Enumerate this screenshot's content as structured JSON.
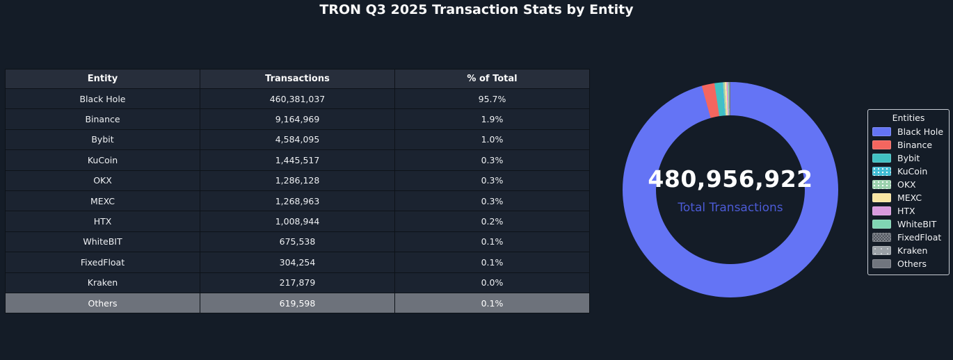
{
  "title": "TRON Q3 2025 Transaction Stats by Entity",
  "colors": {
    "background": "#141c27",
    "table_header_bg": "#272e3b",
    "table_row_bg": "#1b2330",
    "others_row_bg": "#6d727b",
    "grid_border": "#0d1218",
    "center_label_color": "#4c5bd6",
    "legend_border": "#c9ced6"
  },
  "table": {
    "headers": [
      "Entity",
      "Transactions",
      "% of Total"
    ],
    "rows": [
      {
        "entity": "Black Hole",
        "transactions": "460,381,037",
        "pct": "95.7%"
      },
      {
        "entity": "Binance",
        "transactions": "9,164,969",
        "pct": "1.9%"
      },
      {
        "entity": "Bybit",
        "transactions": "4,584,095",
        "pct": "1.0%"
      },
      {
        "entity": "KuCoin",
        "transactions": "1,445,517",
        "pct": "0.3%"
      },
      {
        "entity": "OKX",
        "transactions": "1,286,128",
        "pct": "0.3%"
      },
      {
        "entity": "MEXC",
        "transactions": "1,268,963",
        "pct": "0.3%"
      },
      {
        "entity": "HTX",
        "transactions": "1,008,944",
        "pct": "0.2%"
      },
      {
        "entity": "WhiteBIT",
        "transactions": "675,538",
        "pct": "0.1%"
      },
      {
        "entity": "FixedFloat",
        "transactions": "304,254",
        "pct": "0.1%"
      },
      {
        "entity": "Kraken",
        "transactions": "217,879",
        "pct": "0.0%"
      },
      {
        "entity": "Others",
        "transactions": "619,598",
        "pct": "0.1%"
      }
    ]
  },
  "chart_data": {
    "type": "pie",
    "subtype": "donut",
    "categories": [
      "Black Hole",
      "Binance",
      "Bybit",
      "KuCoin",
      "OKX",
      "MEXC",
      "HTX",
      "WhiteBIT",
      "FixedFloat",
      "Kraken",
      "Others"
    ],
    "values": [
      460381037,
      9164969,
      4584095,
      1445517,
      1286128,
      1268963,
      1008944,
      675538,
      304254,
      217879,
      619598
    ],
    "percent_of_total": [
      95.7,
      1.9,
      1.0,
      0.3,
      0.3,
      0.3,
      0.2,
      0.1,
      0.1,
      0.0,
      0.1
    ],
    "colors": [
      "#6474f5",
      "#f4665f",
      "#41c1c2",
      "#3fbcd4",
      "#9bd1ad",
      "#f8e5a3",
      "#d99ade",
      "#80d5b3",
      "#8b9097",
      "#9aa0a6",
      "#70757e"
    ],
    "patterns": [
      "none",
      "none",
      "none",
      "dots",
      "dots",
      "none",
      "none",
      "none",
      "hatch",
      "dots-sparse",
      "none"
    ],
    "center_total": "480,956,922",
    "center_label": "Total Transactions",
    "legend_title": "Entities",
    "legend_position": "right",
    "start_angle": "top",
    "direction": "clockwise"
  }
}
